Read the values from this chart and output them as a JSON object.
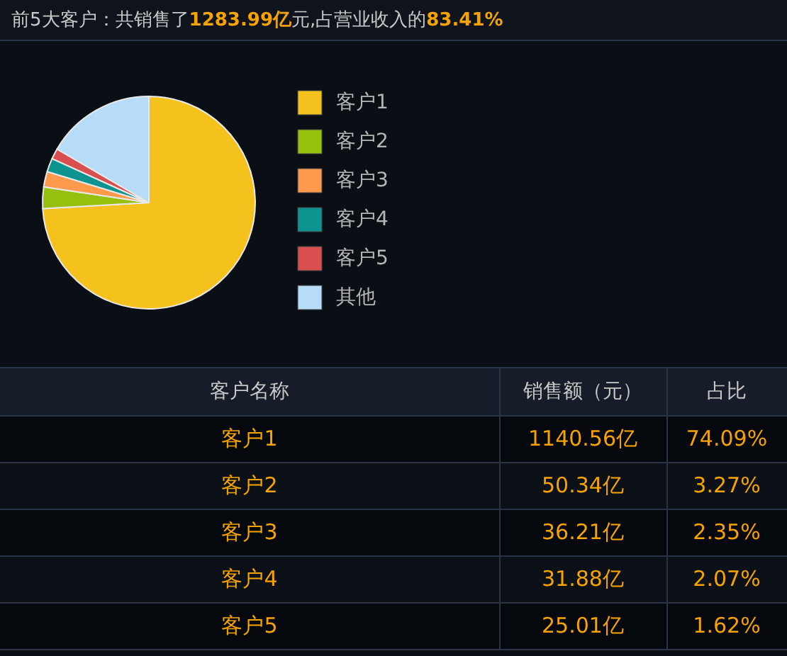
{
  "chart_data": {
    "type": "pie",
    "title": "前5大客户：共销售了1283.99亿元,占营业收入的83.41%",
    "categories": [
      "客户1",
      "客户2",
      "客户3",
      "客户4",
      "客户5",
      "其他"
    ],
    "values": [
      74.09,
      3.27,
      2.35,
      2.07,
      1.62,
      16.59
    ],
    "colors": [
      "#f5c21d",
      "#97bf0d",
      "#ff9a4d",
      "#0e9490",
      "#d94f4f",
      "#b7dcf8"
    ],
    "legend": "right",
    "annotations": [
      "客户名称",
      "销售额（元）",
      "占比",
      "1140.56亿",
      "74.09%",
      "50.34亿",
      "3.27%",
      "36.21亿",
      "2.35%",
      "31.88亿",
      "2.07%",
      "25.01亿",
      "1.62%"
    ]
  }
}
